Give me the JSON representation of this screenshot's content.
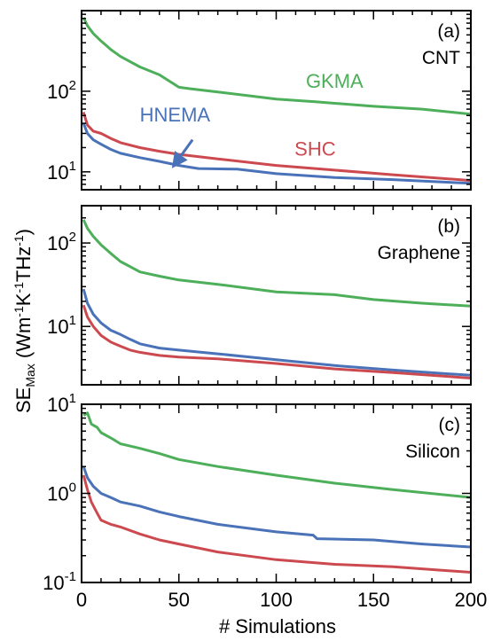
{
  "colors": {
    "GKMA": "#4daf5a",
    "HNEMA": "#4a72b8",
    "SHC": "#cc4a4f"
  },
  "chart_data": {
    "type": "line",
    "log_y": true,
    "shared_xlabel": "# Simulations",
    "shared_ylabel": {
      "prefix": "SE",
      "subscript": "Max",
      "unit": " (Wm-1K-1THz-1)",
      "parts": [
        {
          "text": " (Wm",
          "sup": false
        },
        {
          "text": "-1",
          "sup": true
        },
        {
          "text": "K",
          "sup": false
        },
        {
          "text": "-1",
          "sup": true
        },
        {
          "text": "THz",
          "sup": false
        },
        {
          "text": "-1",
          "sup": true
        },
        {
          "text": ")",
          "sup": false
        }
      ]
    },
    "xlim": [
      0,
      200
    ],
    "xticks": [
      0,
      50,
      100,
      150,
      200
    ],
    "panels": [
      {
        "label": "(a)",
        "material": "CNT",
        "ylim": [
          6,
          1000
        ],
        "yticks": [
          {
            "value": 10,
            "base": "10",
            "exp": "1"
          },
          {
            "value": 100,
            "base": "10",
            "exp": "2"
          }
        ],
        "series": [
          {
            "name": "GKMA",
            "points": [
              [
                1,
                820
              ],
              [
                3,
                650
              ],
              [
                6,
                520
              ],
              [
                10,
                420
              ],
              [
                15,
                330
              ],
              [
                20,
                270
              ],
              [
                30,
                200
              ],
              [
                40,
                160
              ],
              [
                50,
                112
              ],
              [
                55,
                108
              ],
              [
                70,
                98
              ],
              [
                100,
                80
              ],
              [
                120,
                74
              ],
              [
                150,
                65
              ],
              [
                175,
                60
              ],
              [
                200,
                52
              ]
            ]
          },
          {
            "name": "HNEMA",
            "points": [
              [
                1,
                40
              ],
              [
                3,
                30
              ],
              [
                6,
                25
              ],
              [
                10,
                22
              ],
              [
                15,
                19
              ],
              [
                20,
                17
              ],
              [
                30,
                15
              ],
              [
                40,
                13.5
              ],
              [
                50,
                12
              ],
              [
                60,
                11
              ],
              [
                80,
                10.8
              ],
              [
                100,
                9.5
              ],
              [
                130,
                8.5
              ],
              [
                160,
                8
              ],
              [
                200,
                7.2
              ]
            ]
          },
          {
            "name": "SHC",
            "points": [
              [
                1,
                55
              ],
              [
                3,
                38
              ],
              [
                6,
                32
              ],
              [
                10,
                30
              ],
              [
                15,
                26
              ],
              [
                20,
                23
              ],
              [
                30,
                20
              ],
              [
                40,
                18
              ],
              [
                50,
                16.5
              ],
              [
                70,
                14.5
              ],
              [
                100,
                12
              ],
              [
                130,
                10.5
              ],
              [
                160,
                9.2
              ],
              [
                200,
                7.8
              ]
            ]
          }
        ],
        "annotations": [
          {
            "text": "GKMA",
            "series": "GKMA",
            "x": 130,
            "y": 110
          },
          {
            "text": "HNEMA",
            "series": "HNEMA",
            "x": 48,
            "y": 42
          },
          {
            "text": "SHC",
            "series": "SHC",
            "x": 120,
            "y": 16
          }
        ],
        "arrow": {
          "series": "HNEMA",
          "from": [
            57,
            25
          ],
          "to": [
            48,
            12.5
          ]
        }
      },
      {
        "label": "(b)",
        "material": "Graphene",
        "ylim": [
          2,
          280
        ],
        "yticks": [
          {
            "value": 10,
            "base": "10",
            "exp": "1"
          },
          {
            "value": 100,
            "base": "10",
            "exp": "2"
          }
        ],
        "series": [
          {
            "name": "GKMA",
            "points": [
              [
                1,
                190
              ],
              [
                3,
                150
              ],
              [
                6,
                120
              ],
              [
                10,
                95
              ],
              [
                15,
                75
              ],
              [
                20,
                60
              ],
              [
                25,
                52
              ],
              [
                30,
                45
              ],
              [
                40,
                40
              ],
              [
                50,
                36
              ],
              [
                70,
                32
              ],
              [
                100,
                26
              ],
              [
                130,
                24
              ],
              [
                150,
                21
              ],
              [
                175,
                19
              ],
              [
                200,
                17.5
              ]
            ]
          },
          {
            "name": "HNEMA",
            "points": [
              [
                1,
                28
              ],
              [
                3,
                19
              ],
              [
                6,
                14
              ],
              [
                10,
                11
              ],
              [
                15,
                9
              ],
              [
                20,
                8
              ],
              [
                25,
                7
              ],
              [
                30,
                6.2
              ],
              [
                40,
                5.5
              ],
              [
                50,
                5.2
              ],
              [
                70,
                4.7
              ],
              [
                100,
                4
              ],
              [
                130,
                3.4
              ],
              [
                160,
                3
              ],
              [
                200,
                2.6
              ]
            ]
          },
          {
            "name": "SHC",
            "points": [
              [
                1,
                18
              ],
              [
                3,
                13
              ],
              [
                6,
                10
              ],
              [
                10,
                7.8
              ],
              [
                15,
                6.5
              ],
              [
                20,
                5.8
              ],
              [
                25,
                5.2
              ],
              [
                30,
                4.9
              ],
              [
                40,
                4.5
              ],
              [
                50,
                4.3
              ],
              [
                70,
                4.1
              ],
              [
                100,
                3.6
              ],
              [
                130,
                3.1
              ],
              [
                160,
                2.8
              ],
              [
                200,
                2.4
              ]
            ]
          }
        ],
        "annotations": [],
        "arrow": null
      },
      {
        "label": "(c)",
        "material": "Silicon",
        "ylim": [
          0.1,
          10
        ],
        "yticks": [
          {
            "value": 0.1,
            "base": "10",
            "exp": "-1"
          },
          {
            "value": 1,
            "base": "10",
            "exp": "0"
          },
          {
            "value": 10,
            "base": "10",
            "exp": "1"
          }
        ],
        "series": [
          {
            "name": "GKMA",
            "points": [
              [
                1,
                7.5
              ],
              [
                3,
                8
              ],
              [
                5,
                6
              ],
              [
                8,
                5.5
              ],
              [
                10,
                4.8
              ],
              [
                15,
                4.2
              ],
              [
                20,
                3.6
              ],
              [
                30,
                3.2
              ],
              [
                40,
                2.8
              ],
              [
                50,
                2.4
              ],
              [
                70,
                2
              ],
              [
                100,
                1.6
              ],
              [
                130,
                1.3
              ],
              [
                160,
                1.1
              ],
              [
                200,
                0.9
              ]
            ]
          },
          {
            "name": "HNEMA",
            "points": [
              [
                1,
                2
              ],
              [
                3,
                1.5
              ],
              [
                6,
                1.2
              ],
              [
                10,
                1
              ],
              [
                15,
                0.9
              ],
              [
                20,
                0.8
              ],
              [
                30,
                0.72
              ],
              [
                40,
                0.62
              ],
              [
                50,
                0.55
              ],
              [
                70,
                0.45
              ],
              [
                100,
                0.37
              ],
              [
                119,
                0.34
              ],
              [
                121,
                0.31
              ],
              [
                150,
                0.3
              ],
              [
                175,
                0.27
              ],
              [
                200,
                0.25
              ]
            ]
          },
          {
            "name": "SHC",
            "points": [
              [
                1,
                1.6
              ],
              [
                3,
                1.1
              ],
              [
                5,
                0.8
              ],
              [
                8,
                0.6
              ],
              [
                10,
                0.5
              ],
              [
                15,
                0.45
              ],
              [
                20,
                0.42
              ],
              [
                30,
                0.35
              ],
              [
                40,
                0.3
              ],
              [
                50,
                0.27
              ],
              [
                70,
                0.22
              ],
              [
                100,
                0.18
              ],
              [
                130,
                0.16
              ],
              [
                160,
                0.15
              ],
              [
                200,
                0.13
              ]
            ]
          }
        ],
        "annotations": [],
        "arrow": null
      }
    ]
  }
}
